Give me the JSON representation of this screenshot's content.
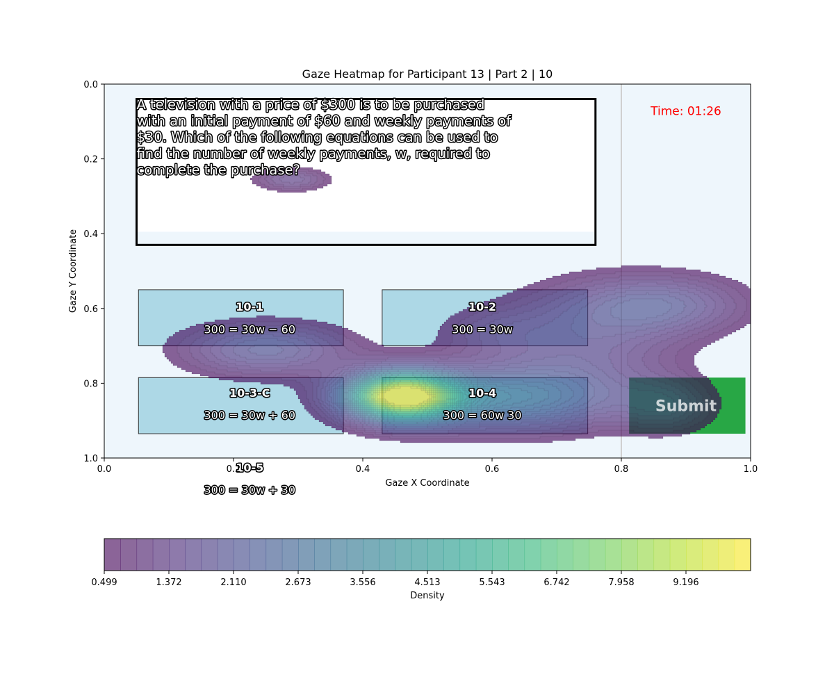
{
  "chart_data": {
    "type": "heatmap",
    "title": "Gaze Heatmap for Participant 13 | Part 2 | 10",
    "xlabel": "Gaze X Coordinate",
    "ylabel": "Gaze Y Coordinate",
    "xlim": [
      0,
      1
    ],
    "ylim": [
      1,
      0
    ],
    "x_ticks": [
      "0.0",
      "0.2",
      "0.4",
      "0.6",
      "0.8",
      "1.0"
    ],
    "y_ticks": [
      "0.0",
      "0.2",
      "0.4",
      "0.6",
      "0.8",
      "1.0"
    ],
    "grid": false,
    "question": [
      "A television with a price of $300 is to be purchased",
      "with an initial payment of $60 and weekly payments of",
      "$30. Which of the following equations can be used to",
      "find the number of weekly payments, w, required to",
      "complete the purchase?"
    ],
    "timer": "Time: 01:26",
    "submit_label": "Submit",
    "options": [
      {
        "id": "10-1",
        "equation": "300 = 30w − 60",
        "box": true,
        "x": [
          0.053,
          0.37
        ],
        "y": [
          0.55,
          0.7
        ],
        "labelx": 0.225,
        "idy": 0.595,
        "eqy": 0.655
      },
      {
        "id": "10-2",
        "equation": "300 = 30w",
        "box": true,
        "x": [
          0.43,
          0.748
        ],
        "y": [
          0.55,
          0.7
        ],
        "labelx": 0.585,
        "idy": 0.595,
        "eqy": 0.655
      },
      {
        "id": "10-3-C",
        "equation": "300 = 30w + 60",
        "box": true,
        "x": [
          0.053,
          0.37
        ],
        "y": [
          0.785,
          0.935
        ],
        "labelx": 0.225,
        "idy": 0.825,
        "eqy": 0.885
      },
      {
        "id": "10-4",
        "equation": "300 = 60w 30",
        "box": true,
        "x": [
          0.43,
          0.748
        ],
        "y": [
          0.785,
          0.935
        ],
        "labelx": 0.585,
        "idy": 0.825,
        "eqy": 0.885
      },
      {
        "id": "10-5",
        "equation": "300 = 30w + 30",
        "box": false,
        "x": [
          0.053,
          0.37
        ],
        "y": [
          1.0,
          1.1
        ],
        "labelx": 0.225,
        "idy": 1.025,
        "eqy": 1.085
      }
    ],
    "density_peaks": [
      {
        "x": 0.46,
        "y": 0.835,
        "sx": 0.06,
        "sy": 0.045,
        "w": 10.6
      },
      {
        "x": 0.62,
        "y": 0.84,
        "sx": 0.12,
        "sy": 0.06,
        "w": 3.6
      },
      {
        "x": 0.25,
        "y": 0.71,
        "sx": 0.09,
        "sy": 0.05,
        "w": 2.4
      },
      {
        "x": 0.86,
        "y": 0.59,
        "sx": 0.09,
        "sy": 0.055,
        "w": 2.2
      },
      {
        "x": 0.74,
        "y": 0.69,
        "sx": 0.1,
        "sy": 0.1,
        "w": 1.7
      },
      {
        "x": 0.87,
        "y": 0.86,
        "sx": 0.05,
        "sy": 0.05,
        "w": 1.6
      },
      {
        "x": 0.29,
        "y": 0.255,
        "sx": 0.04,
        "sy": 0.022,
        "w": 1.7
      },
      {
        "x": 0.6,
        "y": 0.66,
        "sx": 0.06,
        "sy": 0.045,
        "w": 0.8
      }
    ],
    "colorbar": {
      "label": "Density",
      "ticks": [
        "0.499",
        "1.372",
        "2.110",
        "2.673",
        "3.556",
        "4.513",
        "5.543",
        "6.742",
        "7.958",
        "9.196"
      ],
      "min": 0.499,
      "max": 10.8,
      "levels": 40
    },
    "colors": {
      "plot_background": "#eef6fc",
      "option_box": "#add8e6",
      "submit": "#28a745",
      "timer": "#ff0000",
      "colormap": "viridis"
    }
  }
}
